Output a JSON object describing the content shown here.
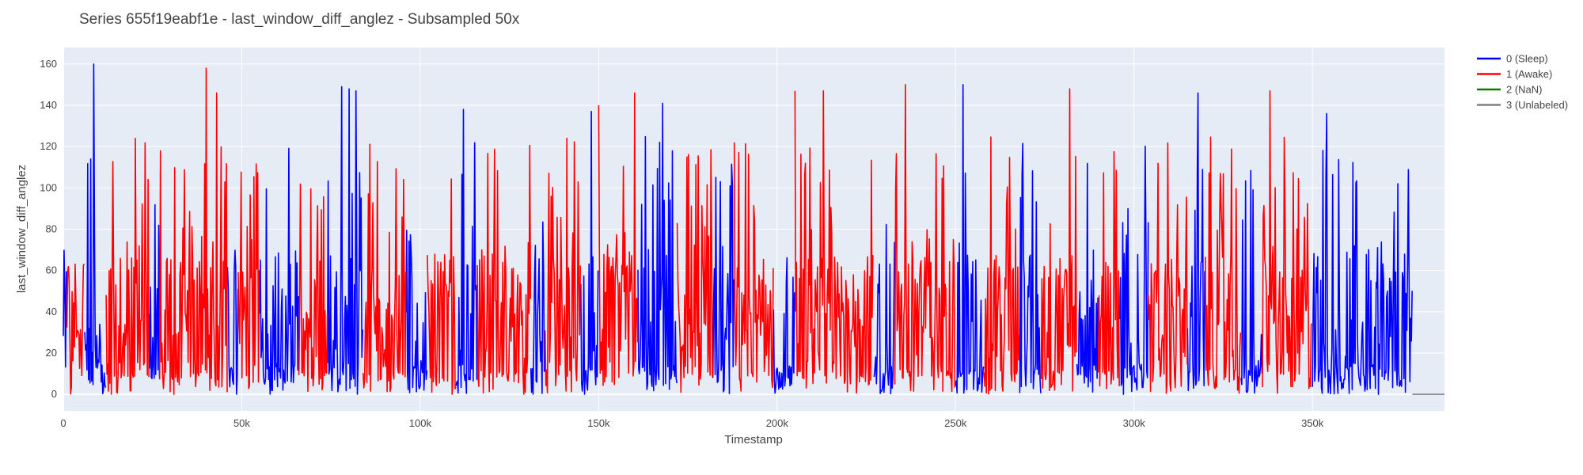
{
  "chart_data": {
    "type": "line",
    "title": "Series 655f19eabf1e - last_window_diff_anglez - Subsampled 50x",
    "xlabel": "Timestamp",
    "ylabel": "last_window_diff_anglez",
    "xlim": [
      0,
      387000
    ],
    "ylim": [
      -8,
      168
    ],
    "x_ticks": [
      0,
      50000,
      100000,
      150000,
      200000,
      250000,
      300000,
      350000
    ],
    "x_tick_labels": [
      "0",
      "50k",
      "100k",
      "150k",
      "200k",
      "250k",
      "300k",
      "350k"
    ],
    "y_ticks": [
      0,
      20,
      40,
      60,
      80,
      100,
      120,
      140,
      160
    ],
    "y_tick_labels": [
      "0",
      "20",
      "40",
      "60",
      "80",
      "100",
      "120",
      "140",
      "160"
    ],
    "grid": true,
    "legend_position": "top-right",
    "plot_background": "#e5ecf6",
    "series": [
      {
        "name": "0 (Sleep)",
        "color": "#0000ff",
        "segments": [
          [
            0,
            1000
          ],
          [
            6000,
            12000
          ],
          [
            24000,
            27000
          ],
          [
            46000,
            49000
          ],
          [
            55000,
            66000
          ],
          [
            74000,
            84000
          ],
          [
            96000,
            102000
          ],
          [
            110000,
            116000
          ],
          [
            131000,
            135000
          ],
          [
            145000,
            150000
          ],
          [
            161000,
            172000
          ],
          [
            182000,
            188000
          ],
          [
            199000,
            205000
          ],
          [
            227000,
            233000
          ],
          [
            250000,
            258000
          ],
          [
            268000,
            274000
          ],
          [
            284000,
            290000
          ],
          [
            296000,
            304000
          ],
          [
            315000,
            320000
          ],
          [
            330000,
            336000
          ],
          [
            350000,
            378000
          ]
        ],
        "peaks": [
          [
            8500,
            160
          ],
          [
            78000,
            149
          ],
          [
            80000,
            148
          ],
          [
            82000,
            147
          ],
          [
            112000,
            138
          ],
          [
            148000,
            137
          ],
          [
            168000,
            141
          ],
          [
            252000,
            150
          ],
          [
            318000,
            146
          ],
          [
            354000,
            136
          ]
        ]
      },
      {
        "name": "1 (Awake)",
        "color": "#ff0000",
        "segments": [
          [
            1000,
            6000
          ],
          [
            12000,
            24000
          ],
          [
            27000,
            46000
          ],
          [
            49000,
            55000
          ],
          [
            66000,
            74000
          ],
          [
            84000,
            96000
          ],
          [
            102000,
            110000
          ],
          [
            116000,
            131000
          ],
          [
            135000,
            145000
          ],
          [
            150000,
            161000
          ],
          [
            172000,
            182000
          ],
          [
            188000,
            199000
          ],
          [
            205000,
            227000
          ],
          [
            233000,
            250000
          ],
          [
            258000,
            268000
          ],
          [
            274000,
            284000
          ],
          [
            290000,
            296000
          ],
          [
            304000,
            315000
          ],
          [
            320000,
            330000
          ],
          [
            336000,
            350000
          ]
        ],
        "peaks": [
          [
            40000,
            158
          ],
          [
            43000,
            146
          ],
          [
            48000,
            153
          ],
          [
            150000,
            140
          ],
          [
            160000,
            146
          ],
          [
            205000,
            147
          ],
          [
            213000,
            147
          ],
          [
            236000,
            150
          ],
          [
            282000,
            148
          ],
          [
            338000,
            147
          ]
        ]
      },
      {
        "name": "2 (NaN)",
        "color": "#008000",
        "segments": [],
        "peaks": []
      },
      {
        "name": "3 (Unlabeled)",
        "color": "#808080",
        "segments": [
          [
            378000,
            387000
          ]
        ],
        "peaks": []
      }
    ]
  }
}
